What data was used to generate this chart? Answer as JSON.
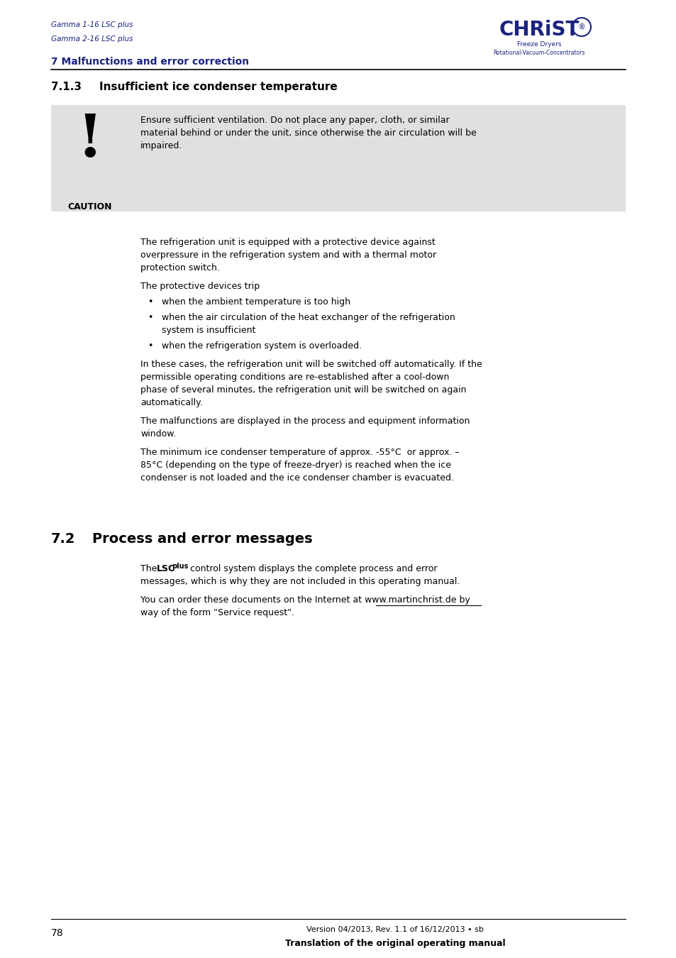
{
  "page_width": 9.54,
  "page_height": 13.5,
  "bg_color": "#ffffff",
  "header": {
    "line1": "Gamma 1-16 LSC plus",
    "line2": "Gamma 2-16 LSC plus",
    "section": "7 Malfunctions and error correction",
    "text_color": "#1a237e"
  },
  "logo": {
    "christ_text": "CHRiST",
    "freeze_dryers": "Freeze Dryers",
    "rotational": "Rotational-Vacuum-Concentrators",
    "color": "#1a237e"
  },
  "section_713": {
    "number": "7.1.3",
    "title": "Insufficient ice condenser temperature"
  },
  "caution_box": {
    "bg_color": "#e0e0e0",
    "label": "CAUTION",
    "text_line1": "Ensure sufficient ventilation. Do not place any paper, cloth, or similar",
    "text_line2": "material behind or under the unit, since otherwise the air circulation will be",
    "text_line3": "impaired."
  },
  "para1_lines": [
    "The refrigeration unit is equipped with a protective device against",
    "overpressure in the refrigeration system and with a thermal motor",
    "protection switch."
  ],
  "para2": "The protective devices trip",
  "bullets": [
    [
      "when the ambient temperature is too high"
    ],
    [
      "when the air circulation of the heat exchanger of the refrigeration",
      "system is insufficient"
    ],
    [
      "when the refrigeration system is overloaded."
    ]
  ],
  "para3_lines": [
    "In these cases, the refrigeration unit will be switched off automatically. If the",
    "permissible operating conditions are re-established after a cool-down",
    "phase of several minutes, the refrigeration unit will be switched on again",
    "automatically."
  ],
  "para4_lines": [
    "The malfunctions are displayed in the process and equipment information",
    "window."
  ],
  "para5_lines": [
    "The minimum ice condenser temperature of approx. -55°C  or approx. –",
    "85°C (depending on the type of freeze-dryer) is reached when the ice",
    "condenser is not loaded and the ice condenser chamber is evacuated."
  ],
  "section_72": {
    "number": "7.2",
    "title": "Process and error messages"
  },
  "s72_line1_pre": "The ",
  "s72_line1_bold": "LSC",
  "s72_line1_sub": "plus",
  "s72_line1_post": "  control system displays the complete process and error",
  "s72_line2": "messages, which is why they are not included in this operating manual.",
  "s72_line3": "You can order these documents on the Internet at www.martinchrist.de by",
  "s72_line4": "way of the form \"Service request\".",
  "footer": {
    "page_number": "78",
    "version": "Version 04/2013, Rev. 1.1 of 16/12/2013 • sb",
    "translation": "Translation of the original operating manual"
  }
}
